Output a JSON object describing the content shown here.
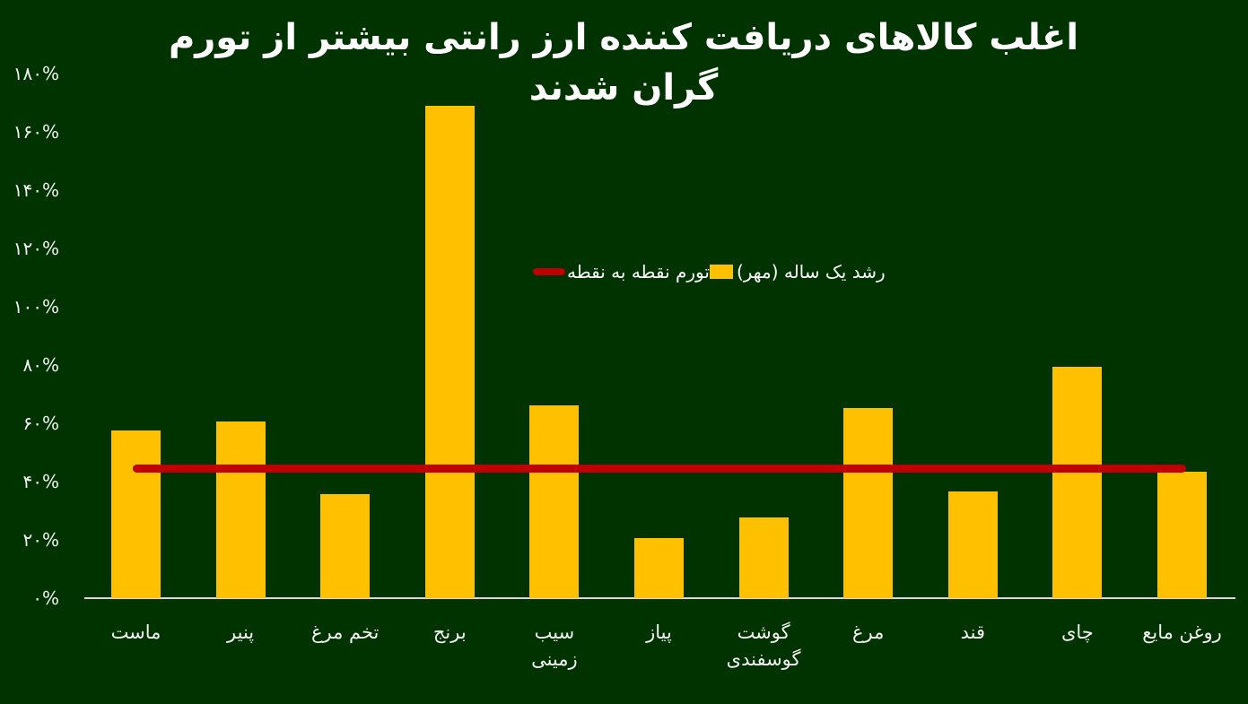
{
  "title": "اغلب کالاهای دریافت کننده ارز رانتی بیشتر از تورم گران شدند",
  "legend": {
    "bar_label": "رشد یک ساله (مهر)",
    "line_label": "تورم نقطه به نقطه"
  },
  "colors": {
    "background": "#003300",
    "bar": "#ffc000",
    "line": "#c00000",
    "text": "#ffffff",
    "axis": "#d9d9d9"
  },
  "y_ticks": [
    "۱۸۰%",
    "۱۶۰%",
    "۱۴۰%",
    "۱۲۰%",
    "۱۰۰%",
    "۸۰%",
    "۶۰%",
    "۴۰%",
    "۲۰%",
    "۰%"
  ],
  "categories": [
    {
      "line1": "ماست",
      "line2": ""
    },
    {
      "line1": "پنیر",
      "line2": ""
    },
    {
      "line1": "تخم مرغ",
      "line2": ""
    },
    {
      "line1": "برنج",
      "line2": ""
    },
    {
      "line1": "سیب",
      "line2": "زمینی"
    },
    {
      "line1": "پیاز",
      "line2": ""
    },
    {
      "line1": "گوشت",
      "line2": "گوسفندی"
    },
    {
      "line1": "مرغ",
      "line2": ""
    },
    {
      "line1": "قند",
      "line2": ""
    },
    {
      "line1": "چای",
      "line2": ""
    },
    {
      "line1": "روغن مایع",
      "line2": ""
    }
  ],
  "chart_data": {
    "type": "bar",
    "title": "اغلب کالاهای دریافت کننده ارز رانتی بیشتر از تورم گران شدند",
    "xlabel": "",
    "ylabel": "",
    "ylim": [
      0,
      180
    ],
    "y_tick_values": [
      0,
      20,
      40,
      60,
      80,
      100,
      120,
      140,
      160,
      180
    ],
    "y_tick_format": "percent (Persian digits)",
    "grid": false,
    "legend_position": "center-right inside plot",
    "categories": [
      "ماست",
      "پنیر",
      "تخم مرغ",
      "برنج",
      "سیب زمینی",
      "پیاز",
      "گوشت گوسفندی",
      "مرغ",
      "قند",
      "چای",
      "روغن مایع"
    ],
    "series": [
      {
        "name": "رشد یک ساله (مهر)",
        "type": "bar",
        "color": "#ffc000",
        "values": [
          57.5,
          60.6,
          35.7,
          168.9,
          66.2,
          20.6,
          27.7,
          65.2,
          36.6,
          79.4,
          43.4
        ]
      },
      {
        "name": "تورم نقطه به نقطه",
        "type": "line",
        "color": "#c00000",
        "values": [
          44.6,
          44.6,
          44.6,
          44.6,
          44.6,
          44.6,
          44.6,
          44.6,
          44.6,
          44.6,
          44.6
        ]
      }
    ]
  }
}
